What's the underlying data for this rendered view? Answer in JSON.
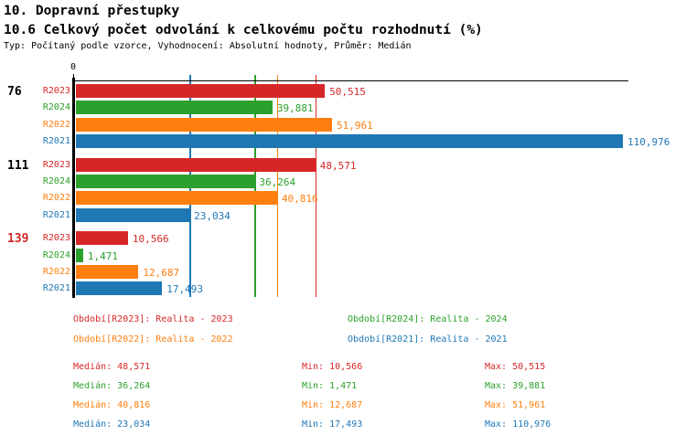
{
  "header": {
    "title": "10. Dopravní přestupky",
    "subtitle": "10.6 Celkový počet odvolání k celkovému počtu rozhodnutí (%)",
    "meta": "Typ: Počítaný podle vzorce, Vyhodnocení: Absolutní hodnoty, Průměr: Medián"
  },
  "chart_data": {
    "type": "bar",
    "orientation": "horizontal",
    "value_axis": {
      "origin_label": "0",
      "max": 110976
    },
    "grid": "off",
    "series": [
      {
        "id": "R2023",
        "name": "Realita - 2023",
        "color": "#d62728"
      },
      {
        "id": "R2024",
        "name": "Realita - 2024",
        "color": "#2ca02c"
      },
      {
        "id": "R2022",
        "name": "Realita - 2022",
        "color": "#ff7f0e"
      },
      {
        "id": "R2021",
        "name": "Realita - 2021",
        "color": "#1f77b4"
      }
    ],
    "groups": [
      {
        "label": "76",
        "label_color": "#000000",
        "bars": [
          {
            "series": "R2023",
            "value": 50515,
            "value_label": "50,515"
          },
          {
            "series": "R2024",
            "value": 39881,
            "value_label": "39,881"
          },
          {
            "series": "R2022",
            "value": 51961,
            "value_label": "51,961"
          },
          {
            "series": "R2021",
            "value": 110976,
            "value_label": "110,976"
          }
        ]
      },
      {
        "label": "111",
        "label_color": "#000000",
        "bars": [
          {
            "series": "R2023",
            "value": 48571,
            "value_label": "48,571"
          },
          {
            "series": "R2024",
            "value": 36264,
            "value_label": "36,264"
          },
          {
            "series": "R2022",
            "value": 40816,
            "value_label": "40,816"
          },
          {
            "series": "R2021",
            "value": 23034,
            "value_label": "23,034"
          }
        ]
      },
      {
        "label": "139",
        "label_color": "#d62728",
        "bars": [
          {
            "series": "R2023",
            "value": 10566,
            "value_label": "10,566"
          },
          {
            "series": "R2024",
            "value": 1471,
            "value_label": "1,471"
          },
          {
            "series": "R2022",
            "value": 12687,
            "value_label": "12,687"
          },
          {
            "series": "R2021",
            "value": 17493,
            "value_label": "17,493"
          }
        ]
      }
    ],
    "median_lines": [
      {
        "series": "R2023",
        "value": 48571
      },
      {
        "series": "R2024",
        "value": 36264
      },
      {
        "series": "R2022",
        "value": 40816
      },
      {
        "series": "R2021",
        "value": 23034
      }
    ]
  },
  "legend": {
    "items": [
      {
        "series": "R2023",
        "text": "Období[R2023]: Realita - 2023",
        "color": "#d62728",
        "row": 0,
        "col": 0
      },
      {
        "series": "R2024",
        "text": "Období[R2024]: Realita - 2024",
        "color": "#2ca02c",
        "row": 0,
        "col": 1
      },
      {
        "series": "R2022",
        "text": "Období[R2022]: Realita - 2022",
        "color": "#ff7f0e",
        "row": 1,
        "col": 0
      },
      {
        "series": "R2021",
        "text": "Období[R2021]: Realita - 2021",
        "color": "#1f77b4",
        "row": 1,
        "col": 1
      }
    ]
  },
  "stats": {
    "rows": [
      {
        "series": "R2023",
        "color": "#d62728",
        "median_label": "Medián: 48,571",
        "min_label": "Min: 10,566",
        "max_label": "Max: 50,515"
      },
      {
        "series": "R2024",
        "color": "#2ca02c",
        "median_label": "Medián: 36,264",
        "min_label": "Min: 1,471",
        "max_label": "Max: 39,881"
      },
      {
        "series": "R2022",
        "color": "#ff7f0e",
        "median_label": "Medián: 40,816",
        "min_label": "Min: 12,687",
        "max_label": "Max: 51,961"
      },
      {
        "series": "R2021",
        "color": "#1f77b4",
        "median_label": "Medián: 23,034",
        "min_label": "Min: 17,493",
        "max_label": "Max: 110,976"
      }
    ]
  }
}
